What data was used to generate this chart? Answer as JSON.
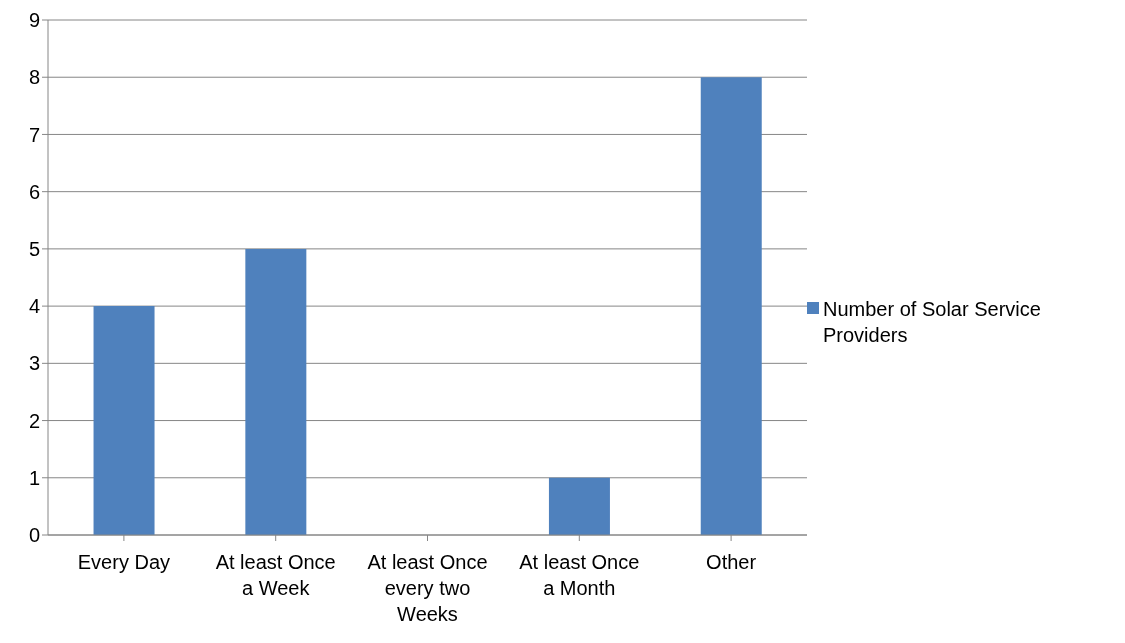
{
  "chart_data": {
    "type": "bar",
    "categories": [
      "Every Day",
      "At least Once a Week",
      "At least Once every two Weeks",
      "At least Once a Month",
      "Other"
    ],
    "series": [
      {
        "name": "Number of Solar Service Providers",
        "color": "#4f81bd",
        "values": [
          4,
          5,
          0,
          1,
          8
        ]
      }
    ],
    "ylim": [
      0,
      9
    ],
    "yticks": [
      0,
      1,
      2,
      3,
      4,
      5,
      6,
      7,
      8,
      9
    ],
    "grid": "y",
    "legend": "right"
  }
}
